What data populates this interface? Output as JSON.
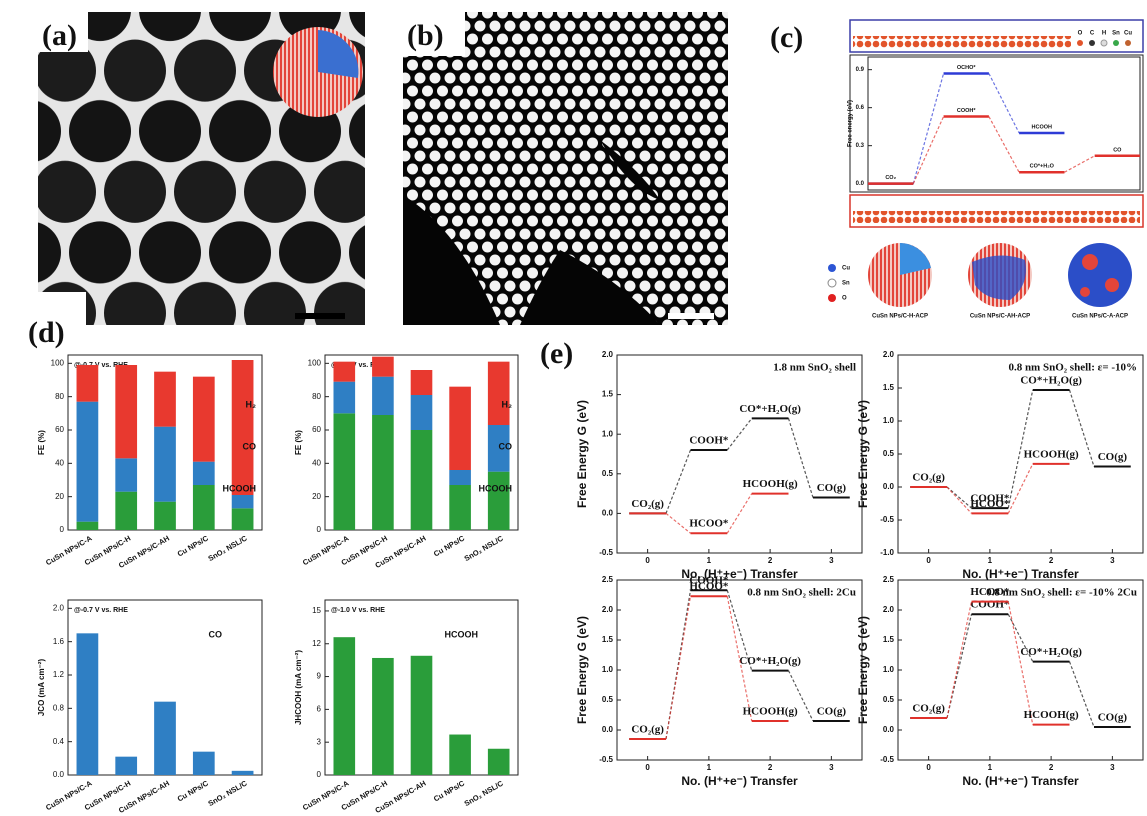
{
  "panel_labels": [
    "(a)",
    "(b)",
    "(c)",
    "(d)",
    "(e)"
  ],
  "panel_c": {
    "atoms": [
      "O",
      "C",
      "H",
      "Sn",
      "Cu"
    ],
    "elements": [
      "Cu",
      "Sn",
      "O"
    ],
    "captions": [
      "CuSn NPs/C-H-ACP",
      "CuSn NPs/C-AH-ACP",
      "CuSn NPs/C-A-ACP"
    ]
  },
  "chart_data": [
    {
      "type": "energy",
      "ylabel": "Free energy (eV)",
      "xlim": [
        -0.3,
        3.3
      ],
      "ylim": [
        -0.05,
        1.0
      ],
      "yticks": [
        {
          "value": 0,
          "label": "0.0"
        },
        0.3,
        0.6,
        0.9
      ],
      "paths": [
        {
          "color": "#2e3bd6",
          "x": [
            0,
            1,
            2
          ],
          "values": [
            0,
            0.87,
            0.4
          ],
          "labels": [
            null,
            "OCHO*",
            "HCOOH"
          ]
        },
        {
          "color": "#e0312b",
          "x": [
            0,
            1,
            2,
            3
          ],
          "values": [
            0,
            0.53,
            0.09,
            0.22
          ],
          "labels": [
            "CO₂",
            "COOH*",
            "CO*+H₂O",
            "CO"
          ]
        }
      ]
    },
    {
      "type": "stacked_bar",
      "title": "@-0.7 V vs. RHE",
      "ylabel": "FE (%)",
      "categories": [
        "CuSn NPs/C-A",
        "CuSn NPs/C-H",
        "CuSn NPs/C-AH",
        "Cu NPs/C",
        "SnO₂ NSL/C"
      ],
      "ylim": [
        0,
        105
      ],
      "yticks": [
        0,
        20,
        40,
        60,
        80,
        100
      ],
      "series": [
        {
          "name": "HCOOH",
          "color": "#2a9d3a",
          "values": [
            5,
            23,
            17,
            27,
            13
          ]
        },
        {
          "name": "CO",
          "color": "#2f7fc4",
          "values": [
            72,
            20,
            45,
            14,
            8
          ]
        },
        {
          "name": "H₂",
          "color": "#e8392f",
          "values": [
            22,
            56,
            33,
            51,
            81
          ]
        }
      ]
    },
    {
      "type": "stacked_bar",
      "title": "@-1.0 V vs. RHE",
      "ylabel": "FE (%)",
      "categories": [
        "CuSn NPs/C-A",
        "CuSn NPs/C-H",
        "CuSn NPs/C-AH",
        "Cu NPs/C",
        "SnO₂ NSL/C"
      ],
      "ylim": [
        0,
        105
      ],
      "yticks": [
        0,
        20,
        40,
        60,
        80,
        100
      ],
      "series": [
        {
          "name": "HCOOH",
          "color": "#2a9d3a",
          "values": [
            70,
            69,
            60,
            27,
            35
          ]
        },
        {
          "name": "CO",
          "color": "#2f7fc4",
          "values": [
            19,
            23,
            21,
            9,
            28
          ]
        },
        {
          "name": "H₂",
          "color": "#e8392f",
          "values": [
            12,
            12,
            15,
            50,
            38
          ]
        }
      ]
    },
    {
      "type": "bar",
      "title": "@-0.7 V vs. RHE",
      "ylabel": "JCO (mA cm⁻²)",
      "categories": [
        "CuSn NPs/C-A",
        "CuSn NPs/C-H",
        "CuSn NPs/C-AH",
        "Cu NPs/C",
        "SnO₂ NSL/C"
      ],
      "ylim": [
        0,
        2.1
      ],
      "yticks": [
        {
          "value": 0,
          "label": "0.0"
        },
        0.4,
        0.8,
        1.2,
        1.6,
        {
          "value": 2,
          "label": "2.0"
        }
      ],
      "series": [
        {
          "name": "CO",
          "color": "#2f7fc4",
          "values": [
            1.7,
            0.22,
            0.88,
            0.28,
            0.05
          ]
        }
      ]
    },
    {
      "type": "bar",
      "title": "@-1.0 V vs. RHE",
      "ylabel": "JHCOOH (mA cm⁻²)",
      "categories": [
        "CuSn NPs/C-A",
        "CuSn NPs/C-H",
        "CuSn NPs/C-AH",
        "Cu NPs/C",
        "SnO₂ NSL/C"
      ],
      "ylim": [
        0,
        16
      ],
      "yticks": [
        0,
        3,
        6,
        9,
        12,
        15
      ],
      "series": [
        {
          "name": "HCOOH",
          "color": "#2a9d3a",
          "values": [
            12.6,
            10.7,
            10.9,
            3.7,
            2.4
          ]
        }
      ]
    },
    {
      "type": "energy",
      "title": "1.8 nm SnO₂ shell",
      "xlabel": "No. (H⁺+e⁻) Transfer",
      "ylabel": "Free Energy G (eV)",
      "xlim": [
        -0.5,
        3.5
      ],
      "xticks": [
        0,
        1,
        2,
        3
      ],
      "ylim": [
        -0.5,
        2.0
      ],
      "yticks": [
        -0.5,
        {
          "value": 0,
          "label": "0.0"
        },
        0.5,
        {
          "value": 1,
          "label": "1.0"
        },
        1.5,
        {
          "value": 2,
          "label": "2.0"
        }
      ],
      "paths": [
        {
          "color": "#111111",
          "x": [
            0,
            1,
            2,
            3
          ],
          "values": [
            0,
            0.8,
            1.2,
            0.2
          ],
          "labels": [
            "CO₂(g)",
            "COOH*",
            "CO*+H₂O(g)",
            "CO(g)"
          ]
        },
        {
          "color": "#e0312b",
          "x": [
            0,
            1,
            2
          ],
          "values": [
            0,
            -0.25,
            0.25
          ],
          "labels": [
            null,
            "HCOO*",
            "HCOOH(g)"
          ]
        }
      ]
    },
    {
      "type": "energy",
      "title": "0.8 nm SnO₂ shell: ε= -10%",
      "xlabel": "No. (H⁺+e⁻) Transfer",
      "ylabel": "Free Energy G (eV)",
      "xlim": [
        -0.5,
        3.5
      ],
      "xticks": [
        0,
        1,
        2,
        3
      ],
      "ylim": [
        -1.0,
        2.0
      ],
      "yticks": [
        {
          "value": -1,
          "label": "-1.0"
        },
        -0.5,
        {
          "value": 0,
          "label": "0.0"
        },
        0.5,
        {
          "value": 1,
          "label": "1.0"
        },
        1.5,
        {
          "value": 2,
          "label": "2.0"
        }
      ],
      "paths": [
        {
          "color": "#111111",
          "x": [
            0,
            1,
            2,
            3
          ],
          "values": [
            0,
            -0.32,
            1.47,
            0.31
          ],
          "labels": [
            "CO₂(g)",
            "COOH*",
            "CO*+H₂O(g)",
            "CO(g)"
          ]
        },
        {
          "color": "#e0312b",
          "x": [
            0,
            1,
            2
          ],
          "values": [
            0,
            -0.4,
            0.35
          ],
          "labels": [
            null,
            "HCOO*",
            "HCOOH(g)"
          ]
        }
      ]
    },
    {
      "type": "energy",
      "title": "0.8 nm SnO₂ shell: 2Cu",
      "xlabel": "No. (H⁺+e⁻) Transfer",
      "ylabel": "Free Energy G (eV)",
      "xlim": [
        -0.5,
        3.5
      ],
      "xticks": [
        0,
        1,
        2,
        3
      ],
      "ylim": [
        -0.5,
        2.5
      ],
      "yticks": [
        -0.5,
        {
          "value": 0,
          "label": "0.0"
        },
        0.5,
        {
          "value": 1,
          "label": "1.0"
        },
        1.5,
        {
          "value": 2,
          "label": "2.0"
        },
        2.5
      ],
      "paths": [
        {
          "color": "#111111",
          "x": [
            0,
            1,
            2,
            3
          ],
          "values": [
            -0.15,
            2.33,
            0.99,
            0.15
          ],
          "labels": [
            "CO₂(g)",
            "COOH*",
            "CO*+H₂O(g)",
            "CO(g)"
          ]
        },
        {
          "color": "#e0312b",
          "x": [
            0,
            1,
            2
          ],
          "values": [
            -0.15,
            2.23,
            0.15
          ],
          "labels": [
            null,
            "HCOO*",
            "HCOOH(g)"
          ]
        }
      ]
    },
    {
      "type": "energy",
      "title": "0.8 nm SnO₂ shell: ε= -10% 2Cu",
      "xlabel": "No. (H⁺+e⁻) Transfer",
      "ylabel": "Free Energy G (eV)",
      "xlim": [
        -0.5,
        3.5
      ],
      "xticks": [
        0,
        1,
        2,
        3
      ],
      "ylim": [
        -0.5,
        2.5
      ],
      "yticks": [
        -0.5,
        {
          "value": 0,
          "label": "0.0"
        },
        0.5,
        {
          "value": 1,
          "label": "1.0"
        },
        1.5,
        {
          "value": 2,
          "label": "2.0"
        },
        2.5
      ],
      "paths": [
        {
          "color": "#111111",
          "x": [
            0,
            1,
            2,
            3
          ],
          "values": [
            0.2,
            1.93,
            1.14,
            0.05
          ],
          "labels": [
            "CO₂(g)",
            "COOH*",
            "CO*+H₂O(g)",
            "CO(g)"
          ]
        },
        {
          "color": "#e0312b",
          "x": [
            0,
            1,
            2
          ],
          "values": [
            0.2,
            2.14,
            0.09
          ],
          "labels": [
            null,
            "HCOO*",
            "HCOOH(g)"
          ]
        }
      ]
    }
  ]
}
